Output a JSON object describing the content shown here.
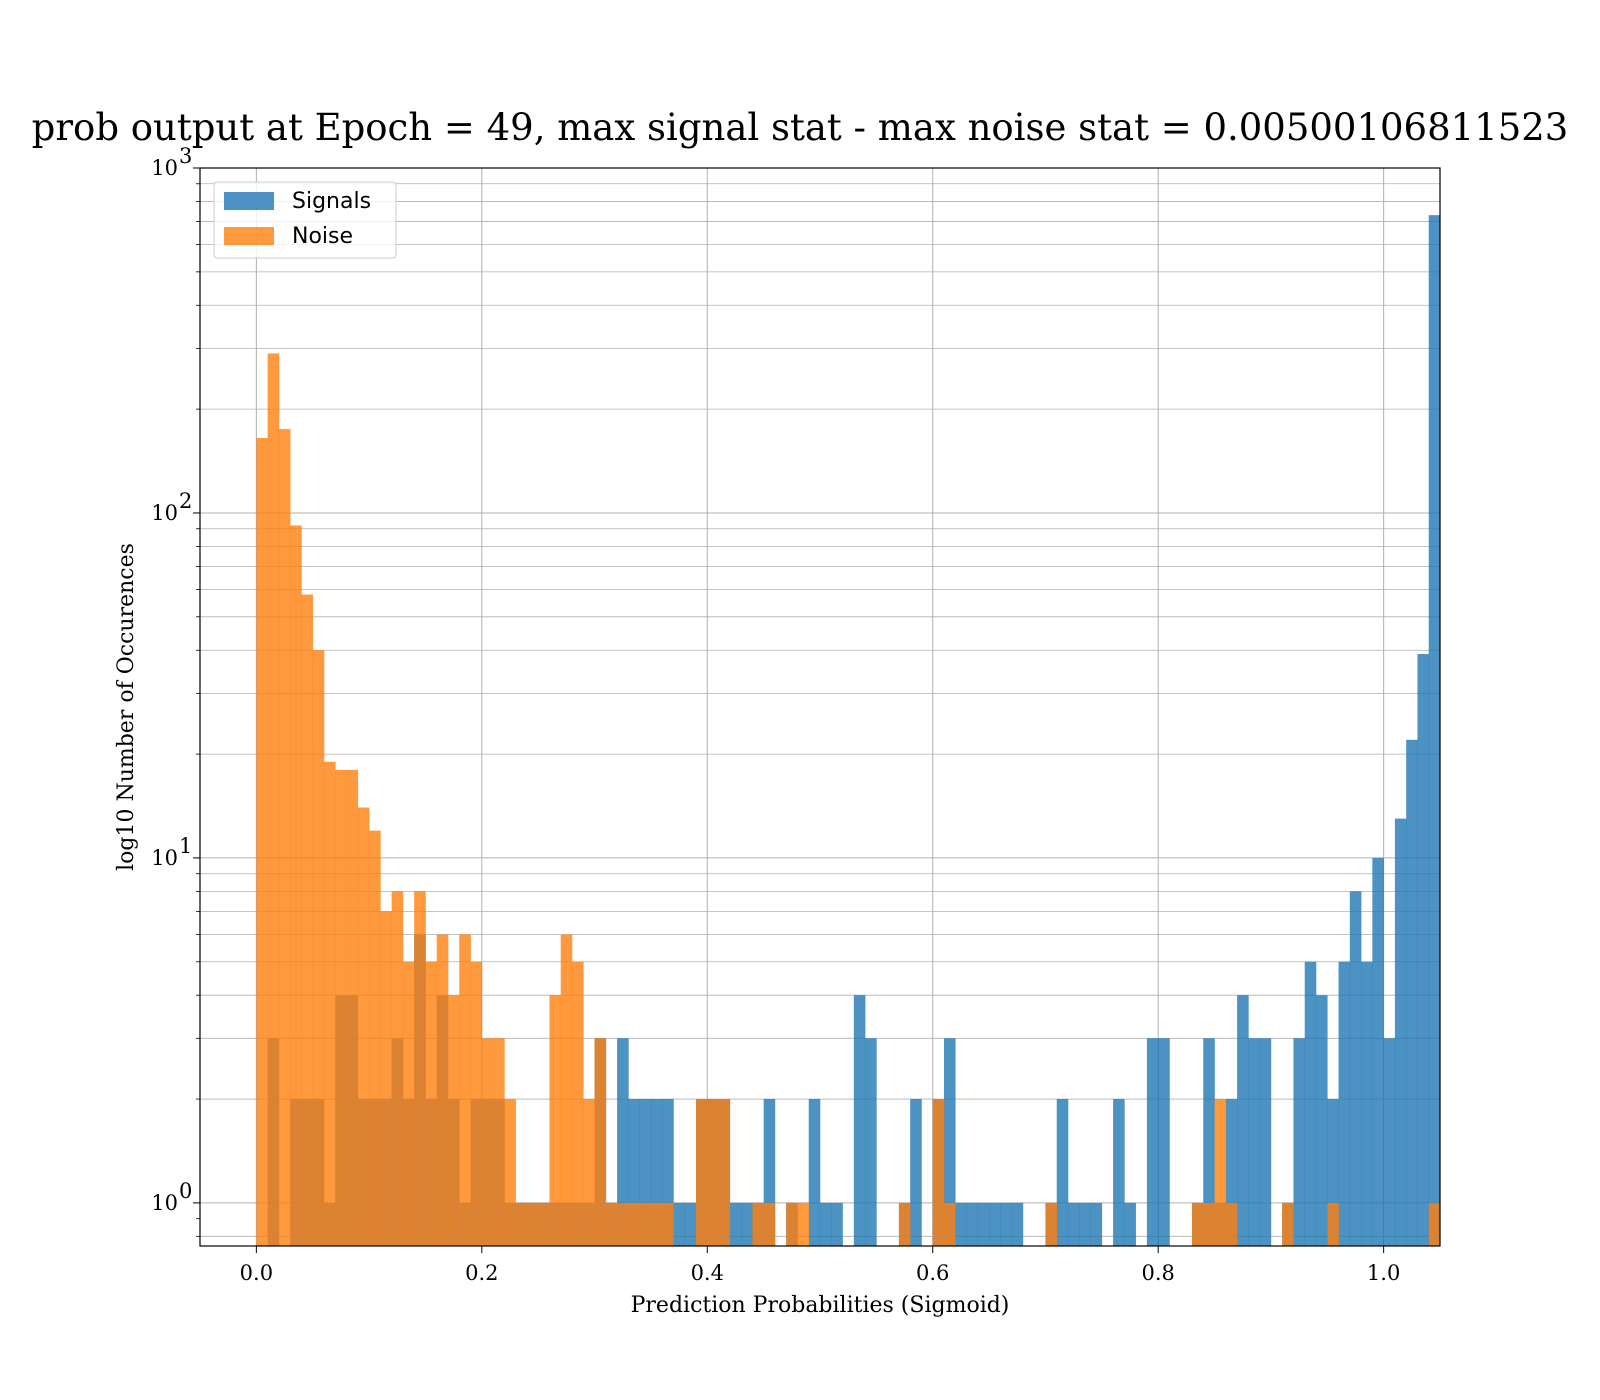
{
  "chart_data": {
    "type": "histogram",
    "title": "prob output at Epoch = 49, max signal stat - max noise stat = 0.00500106811523",
    "xlabel": "Prediction Probabilities (Sigmoid)",
    "ylabel": "log10 Number of Occurences",
    "xlim": [
      -0.05,
      1.05
    ],
    "ylim": [
      0.75,
      1000
    ],
    "yscale": "log",
    "grid": true,
    "legend_position": "top-left",
    "xticks": [
      0.0,
      0.2,
      0.4,
      0.6,
      0.8,
      1.0
    ],
    "xtick_labels": [
      "0.0",
      "0.2",
      "0.4",
      "0.6",
      "0.8",
      "1.0"
    ],
    "yticks": [
      1,
      10,
      100,
      1000
    ],
    "ytick_labels": [
      {
        "base": "10",
        "exp": "0"
      },
      {
        "base": "10",
        "exp": "1"
      },
      {
        "base": "10",
        "exp": "2"
      },
      {
        "base": "10",
        "exp": "3"
      }
    ],
    "bin_width": 0.01,
    "bins_start": 0.0,
    "series": [
      {
        "name": "Signals",
        "color": "#1f77b4",
        "values": [
          0,
          3,
          0,
          2,
          2,
          2,
          1,
          4,
          4,
          2,
          2,
          2,
          3,
          2,
          6,
          2,
          4,
          2,
          1,
          2,
          2,
          2,
          1,
          1,
          1,
          1,
          1,
          1,
          1,
          1,
          3,
          1,
          3,
          2,
          2,
          2,
          2,
          1,
          1,
          2,
          2,
          2,
          1,
          1,
          1,
          2,
          0,
          1,
          0,
          2,
          1,
          1,
          0,
          4,
          3,
          0,
          0,
          1,
          2,
          0,
          2,
          3,
          1,
          1,
          1,
          1,
          1,
          1,
          0,
          0,
          1,
          2,
          1,
          1,
          1,
          0,
          2,
          1,
          0,
          3,
          3,
          0,
          0,
          1,
          3,
          1,
          2,
          4,
          3,
          3,
          0,
          1,
          3,
          5,
          4,
          2,
          5,
          8,
          5,
          10,
          3,
          13,
          22,
          39,
          730
        ]
      },
      {
        "name": "Noise",
        "color": "#ff7f0e",
        "values": [
          165,
          290,
          175,
          92,
          58,
          40,
          19,
          18,
          18,
          14,
          12,
          7,
          8,
          5,
          8,
          5,
          6,
          4,
          6,
          5,
          3,
          3,
          2,
          1,
          1,
          1,
          4,
          6,
          5,
          2,
          3,
          1,
          1,
          1,
          1,
          1,
          1,
          0,
          0,
          2,
          2,
          2,
          0,
          0,
          1,
          1,
          0,
          1,
          1,
          0,
          0,
          0,
          0,
          0,
          0,
          0,
          0,
          1,
          0,
          0,
          2,
          1,
          0,
          0,
          0,
          0,
          0,
          0,
          0,
          0,
          1,
          0,
          0,
          0,
          0,
          0,
          0,
          0,
          0,
          0,
          0,
          0,
          0,
          1,
          1,
          2,
          1,
          0,
          0,
          0,
          0,
          1,
          0,
          0,
          0,
          1,
          0,
          0,
          0,
          0,
          0,
          0,
          0,
          0,
          1
        ]
      }
    ]
  }
}
